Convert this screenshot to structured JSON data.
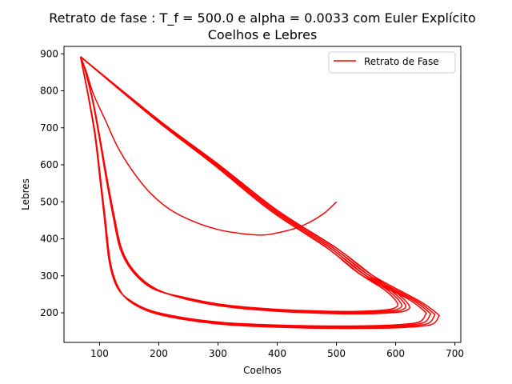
{
  "chart_data": {
    "type": "line",
    "title": "Retrato de fase : T_f = 500.0 e alpha = 0.0033 com Euler Explícito",
    "subtitle": "Coelhos e Lebres",
    "xlabel": "Coelhos",
    "ylabel": "Lebres",
    "xlim": [
      40,
      710
    ],
    "ylim": [
      120,
      920
    ],
    "xticks": [
      100,
      200,
      300,
      400,
      500,
      600,
      700
    ],
    "yticks": [
      200,
      300,
      400,
      500,
      600,
      700,
      800,
      900
    ],
    "grid": false,
    "legend_position": "top-right",
    "series": [
      {
        "name": "Retrato de Fase",
        "color": "#ff0000",
        "start": [
          500,
          500
        ],
        "transient": [
          [
            500,
            500
          ],
          [
            480,
            470
          ],
          [
            455,
            445
          ],
          [
            430,
            428
          ],
          [
            400,
            416
          ],
          [
            375,
            410
          ],
          [
            340,
            414
          ],
          [
            300,
            425
          ],
          [
            260,
            446
          ],
          [
            220,
            478
          ],
          [
            185,
            525
          ],
          [
            155,
            585
          ],
          [
            130,
            650
          ],
          [
            110,
            720
          ],
          [
            90,
            790
          ],
          [
            78,
            850
          ],
          [
            68,
            892
          ]
        ],
        "outer_cycle": [
          [
            68,
            892
          ],
          [
            200,
            721
          ],
          [
            300,
            602
          ],
          [
            400,
            477
          ],
          [
            500,
            375
          ],
          [
            560,
            302
          ],
          [
            640,
            232
          ],
          [
            670,
            198
          ],
          [
            672,
            188
          ],
          [
            660,
            168
          ],
          [
            620,
            161
          ],
          [
            560,
            158
          ],
          [
            480,
            158
          ],
          [
            400,
            161
          ],
          [
            320,
            167
          ],
          [
            250,
            180
          ],
          [
            190,
            200
          ],
          [
            150,
            232
          ],
          [
            130,
            275
          ],
          [
            118,
            340
          ],
          [
            110,
            450
          ],
          [
            102,
            560
          ],
          [
            93,
            680
          ],
          [
            82,
            780
          ],
          [
            72,
            860
          ],
          [
            68,
            892
          ]
        ],
        "inner_cycle": [
          [
            68,
            892
          ],
          [
            200,
            721
          ],
          [
            300,
            602
          ],
          [
            400,
            477
          ],
          [
            500,
            375
          ],
          [
            560,
            302
          ],
          [
            600,
            256
          ],
          [
            622,
            222
          ],
          [
            620,
            208
          ],
          [
            600,
            201
          ],
          [
            540,
            197
          ],
          [
            470,
            199
          ],
          [
            400,
            204
          ],
          [
            320,
            215
          ],
          [
            250,
            235
          ],
          [
            195,
            265
          ],
          [
            160,
            310
          ],
          [
            138,
            370
          ],
          [
            125,
            460
          ],
          [
            112,
            570
          ],
          [
            100,
            680
          ],
          [
            88,
            780
          ],
          [
            75,
            860
          ],
          [
            68,
            892
          ]
        ]
      }
    ]
  }
}
